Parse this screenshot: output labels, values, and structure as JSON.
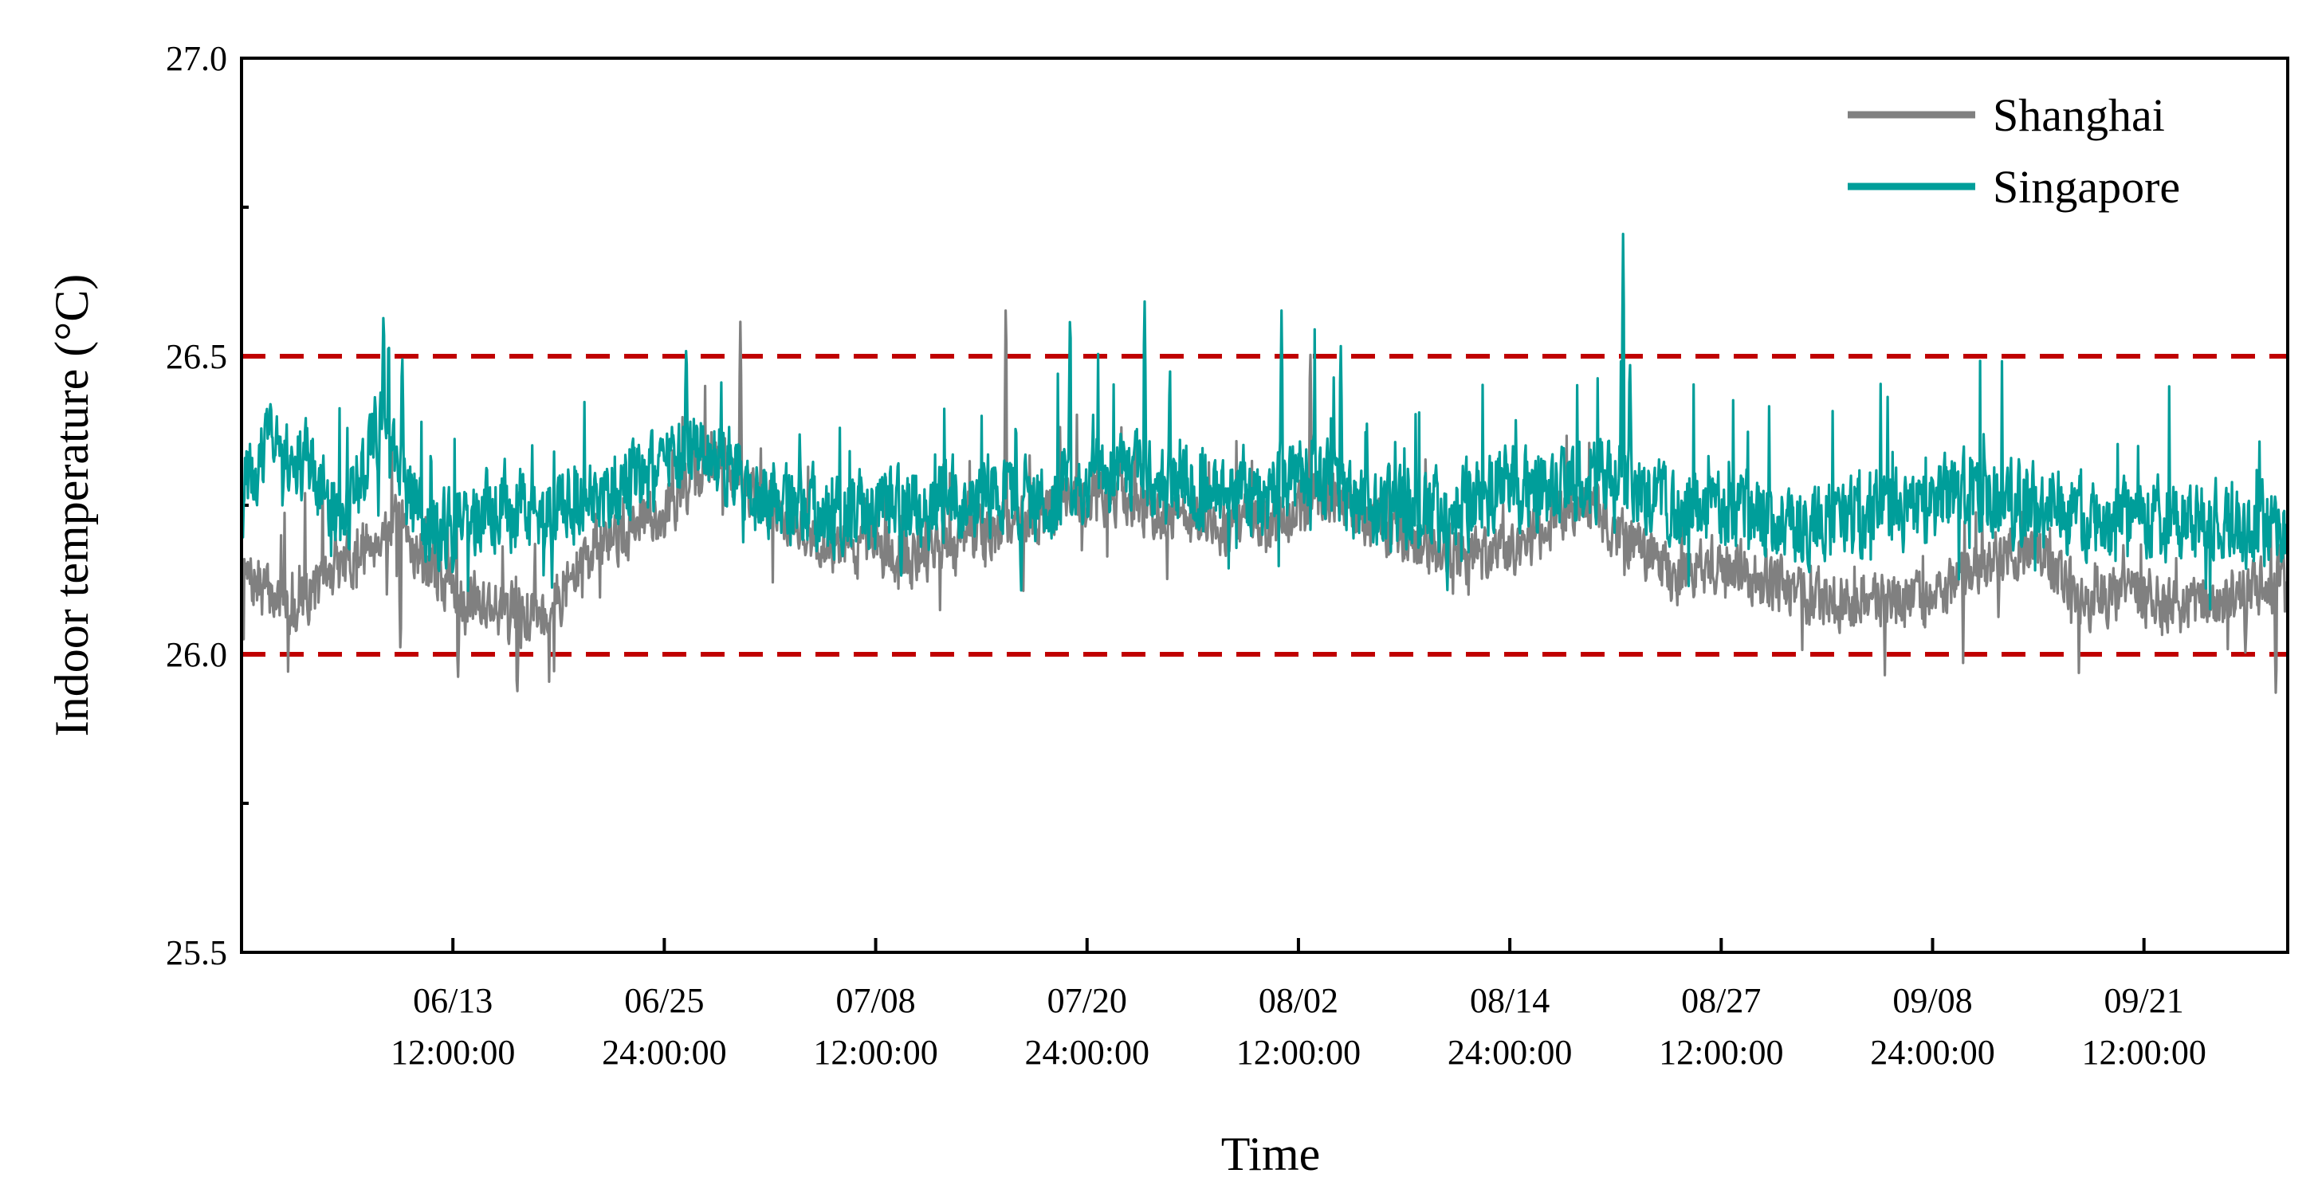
{
  "chart_data": {
    "type": "line",
    "title": "",
    "xlabel": "Time",
    "ylabel": "Indoor temperature (°C)",
    "ylim": [
      25.5,
      27.0
    ],
    "yticks": [
      "25.5",
      "26.0",
      "26.5",
      "27.0"
    ],
    "xlim_days": [
      0,
      121
    ],
    "xticks": [
      {
        "day": 12.5,
        "date": "06/13",
        "time": "12:00:00"
      },
      {
        "day": 25.0,
        "date": "06/25",
        "time": "24:00:00"
      },
      {
        "day": 37.5,
        "date": "07/08",
        "time": "12:00:00"
      },
      {
        "day": 50.0,
        "date": "07/20",
        "time": "24:00:00"
      },
      {
        "day": 62.5,
        "date": "08/02",
        "time": "12:00:00"
      },
      {
        "day": 75.0,
        "date": "08/14",
        "time": "24:00:00"
      },
      {
        "day": 87.5,
        "date": "08/27",
        "time": "12:00:00"
      },
      {
        "day": 100.0,
        "date": "09/08",
        "time": "24:00:00"
      },
      {
        "day": 112.5,
        "date": "09/21",
        "time": "12:00:00"
      }
    ],
    "reference_lines": [
      {
        "value": 26.5,
        "color": "#c00000",
        "style": "dashed"
      },
      {
        "value": 26.0,
        "color": "#c00000",
        "style": "dashed"
      }
    ],
    "legend_position": "top-right",
    "series": [
      {
        "name": "Shanghai",
        "color": "#808080",
        "mean": [
          [
            0,
            26.13
          ],
          [
            3,
            26.08
          ],
          [
            6,
            26.15
          ],
          [
            9,
            26.22
          ],
          [
            12,
            26.12
          ],
          [
            15,
            26.08
          ],
          [
            18,
            26.07
          ],
          [
            21,
            26.18
          ],
          [
            25,
            26.24
          ],
          [
            28,
            26.33
          ],
          [
            31,
            26.26
          ],
          [
            34,
            26.19
          ],
          [
            37,
            26.18
          ],
          [
            40,
            26.16
          ],
          [
            43,
            26.19
          ],
          [
            46,
            26.22
          ],
          [
            49,
            26.26
          ],
          [
            52,
            26.27
          ],
          [
            55,
            26.23
          ],
          [
            58,
            26.22
          ],
          [
            61,
            26.21
          ],
          [
            64,
            26.27
          ],
          [
            67,
            26.22
          ],
          [
            70,
            26.18
          ],
          [
            73,
            26.16
          ],
          [
            76,
            26.19
          ],
          [
            79,
            26.26
          ],
          [
            82,
            26.19
          ],
          [
            85,
            26.13
          ],
          [
            88,
            26.15
          ],
          [
            91,
            26.11
          ],
          [
            94,
            26.09
          ],
          [
            97,
            26.09
          ],
          [
            100,
            26.09
          ],
          [
            103,
            26.15
          ],
          [
            106,
            26.19
          ],
          [
            109,
            26.09
          ],
          [
            112,
            26.1
          ],
          [
            115,
            26.08
          ],
          [
            118,
            26.1
          ],
          [
            121,
            26.13
          ]
        ],
        "spikes": [
          [
            12.8,
            25.95
          ],
          [
            16.3,
            25.92
          ],
          [
            15.8,
            26.01
          ],
          [
            9.4,
            25.99
          ],
          [
            29.5,
            26.56
          ],
          [
            45.2,
            26.62
          ],
          [
            63.2,
            26.53
          ],
          [
            120.3,
            25.92
          ],
          [
            118.5,
            26.0
          ],
          [
            41.5,
            26.34
          ]
        ]
      },
      {
        "name": "Singapore",
        "color": "#009e9a",
        "mean": [
          [
            0,
            26.27
          ],
          [
            2,
            26.36
          ],
          [
            4,
            26.32
          ],
          [
            6,
            26.22
          ],
          [
            8,
            26.38
          ],
          [
            10,
            26.26
          ],
          [
            12,
            26.2
          ],
          [
            15,
            26.25
          ],
          [
            18,
            26.23
          ],
          [
            21,
            26.28
          ],
          [
            24,
            26.29
          ],
          [
            27,
            26.36
          ],
          [
            30,
            26.28
          ],
          [
            33,
            26.24
          ],
          [
            36,
            26.24
          ],
          [
            39,
            26.24
          ],
          [
            42,
            26.26
          ],
          [
            45,
            26.27
          ],
          [
            48,
            26.26
          ],
          [
            51,
            26.31
          ],
          [
            54,
            26.29
          ],
          [
            57,
            26.27
          ],
          [
            60,
            26.26
          ],
          [
            63,
            26.31
          ],
          [
            66,
            26.26
          ],
          [
            69,
            26.23
          ],
          [
            72,
            26.25
          ],
          [
            75,
            26.28
          ],
          [
            78,
            26.27
          ],
          [
            81,
            26.3
          ],
          [
            84,
            26.25
          ],
          [
            87,
            26.24
          ],
          [
            90,
            26.24
          ],
          [
            93,
            26.22
          ],
          [
            96,
            26.24
          ],
          [
            99,
            26.25
          ],
          [
            102,
            26.27
          ],
          [
            105,
            26.25
          ],
          [
            108,
            26.24
          ],
          [
            111,
            26.22
          ],
          [
            114,
            26.23
          ],
          [
            117,
            26.22
          ],
          [
            121,
            26.21
          ]
        ],
        "spikes": [
          [
            8.4,
            26.59
          ],
          [
            8.7,
            26.55
          ],
          [
            9.5,
            26.52
          ],
          [
            26.3,
            26.53
          ],
          [
            49.0,
            26.6
          ],
          [
            53.4,
            26.61
          ],
          [
            61.5,
            26.58
          ],
          [
            65.0,
            26.53
          ],
          [
            81.7,
            26.72
          ],
          [
            82.1,
            26.51
          ],
          [
            39.0,
            26.12
          ],
          [
            46.1,
            26.1
          ],
          [
            71.3,
            26.1
          ]
        ]
      }
    ]
  }
}
